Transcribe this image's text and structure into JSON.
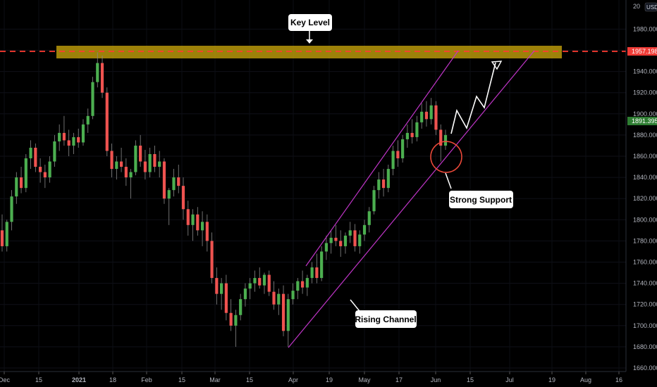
{
  "chart_data": {
    "type": "candlestick",
    "currency": "USD",
    "ylim": [
      1655,
      2010
    ],
    "yticks": [
      1660,
      1680,
      1700,
      1720,
      1740,
      1760,
      1780,
      1800,
      1820,
      1840,
      1860,
      1880,
      1900,
      1920,
      1940,
      1960,
      1980
    ],
    "xticks": [
      "Dec",
      "15",
      "2021",
      "18",
      "Feb",
      "15",
      "Mar",
      "15",
      "Apr",
      "19",
      "May",
      "17",
      "Jun",
      "15",
      "Jul",
      "19",
      "Aug",
      "16"
    ],
    "current_price": "1891.395",
    "key_level_price": "1957.198",
    "top_axis_partial": "20",
    "annotations": {
      "key_level": "Key Level",
      "strong_support": "Strong Support",
      "rising_channel": "Rising Channel"
    },
    "colors": {
      "up": "#26a69a",
      "up_bright": "#4caf50",
      "down": "#ef5350",
      "channel": "#c035c8",
      "zone": "#b8980a",
      "key_line": "#ff3b30",
      "price_tag": "#2e7d32"
    },
    "candles": [
      [
        1790,
        1805,
        1770,
        1775
      ],
      [
        1775,
        1800,
        1770,
        1798
      ],
      [
        1798,
        1828,
        1790,
        1822
      ],
      [
        1822,
        1845,
        1815,
        1840
      ],
      [
        1840,
        1850,
        1825,
        1830
      ],
      [
        1830,
        1862,
        1826,
        1858
      ],
      [
        1858,
        1875,
        1848,
        1868
      ],
      [
        1868,
        1872,
        1845,
        1850
      ],
      [
        1850,
        1858,
        1835,
        1845
      ],
      [
        1845,
        1852,
        1830,
        1840
      ],
      [
        1840,
        1860,
        1835,
        1855
      ],
      [
        1855,
        1880,
        1850,
        1874
      ],
      [
        1874,
        1890,
        1865,
        1882
      ],
      [
        1882,
        1898,
        1870,
        1875
      ],
      [
        1875,
        1885,
        1860,
        1870
      ],
      [
        1870,
        1882,
        1862,
        1878
      ],
      [
        1878,
        1886,
        1868,
        1873
      ],
      [
        1873,
        1895,
        1870,
        1890
      ],
      [
        1890,
        1905,
        1882,
        1898
      ],
      [
        1898,
        1935,
        1895,
        1930
      ],
      [
        1930,
        1958,
        1925,
        1948
      ],
      [
        1948,
        1955,
        1915,
        1920
      ],
      [
        1920,
        1925,
        1860,
        1865
      ],
      [
        1865,
        1872,
        1840,
        1848
      ],
      [
        1848,
        1860,
        1838,
        1855
      ],
      [
        1855,
        1868,
        1845,
        1850
      ],
      [
        1850,
        1858,
        1832,
        1840
      ],
      [
        1840,
        1848,
        1820,
        1845
      ],
      [
        1845,
        1875,
        1842,
        1870
      ],
      [
        1870,
        1880,
        1850,
        1855
      ],
      [
        1855,
        1866,
        1838,
        1845
      ],
      [
        1845,
        1868,
        1840,
        1862
      ],
      [
        1862,
        1870,
        1845,
        1850
      ],
      [
        1850,
        1865,
        1840,
        1855
      ],
      [
        1855,
        1858,
        1815,
        1820
      ],
      [
        1820,
        1830,
        1795,
        1828
      ],
      [
        1828,
        1848,
        1822,
        1840
      ],
      [
        1840,
        1852,
        1825,
        1832
      ],
      [
        1832,
        1840,
        1800,
        1810
      ],
      [
        1810,
        1818,
        1785,
        1795
      ],
      [
        1795,
        1810,
        1780,
        1805
      ],
      [
        1805,
        1812,
        1785,
        1790
      ],
      [
        1790,
        1808,
        1775,
        1798
      ],
      [
        1798,
        1805,
        1770,
        1780
      ],
      [
        1780,
        1788,
        1740,
        1745
      ],
      [
        1745,
        1755,
        1720,
        1730
      ],
      [
        1730,
        1745,
        1715,
        1740
      ],
      [
        1740,
        1748,
        1705,
        1712
      ],
      [
        1712,
        1725,
        1695,
        1700
      ],
      [
        1700,
        1715,
        1680,
        1710
      ],
      [
        1710,
        1730,
        1705,
        1725
      ],
      [
        1725,
        1740,
        1718,
        1735
      ],
      [
        1735,
        1745,
        1725,
        1740
      ],
      [
        1740,
        1752,
        1732,
        1745
      ],
      [
        1745,
        1755,
        1735,
        1738
      ],
      [
        1738,
        1750,
        1730,
        1748
      ],
      [
        1748,
        1752,
        1728,
        1732
      ],
      [
        1732,
        1742,
        1715,
        1720
      ],
      [
        1720,
        1735,
        1710,
        1730
      ],
      [
        1730,
        1738,
        1690,
        1695
      ],
      [
        1695,
        1730,
        1680,
        1725
      ],
      [
        1725,
        1740,
        1720,
        1733
      ],
      [
        1733,
        1745,
        1725,
        1742
      ],
      [
        1742,
        1752,
        1730,
        1736
      ],
      [
        1736,
        1748,
        1728,
        1745
      ],
      [
        1745,
        1760,
        1740,
        1755
      ],
      [
        1755,
        1768,
        1740,
        1745
      ],
      [
        1745,
        1775,
        1742,
        1770
      ],
      [
        1770,
        1785,
        1762,
        1778
      ],
      [
        1778,
        1790,
        1768,
        1783
      ],
      [
        1783,
        1795,
        1775,
        1780
      ],
      [
        1780,
        1790,
        1765,
        1775
      ],
      [
        1775,
        1788,
        1768,
        1785
      ],
      [
        1785,
        1798,
        1778,
        1790
      ],
      [
        1790,
        1796,
        1770,
        1775
      ],
      [
        1775,
        1790,
        1768,
        1786
      ],
      [
        1786,
        1800,
        1780,
        1795
      ],
      [
        1795,
        1812,
        1788,
        1808
      ],
      [
        1808,
        1832,
        1805,
        1828
      ],
      [
        1828,
        1845,
        1820,
        1838
      ],
      [
        1838,
        1848,
        1822,
        1830
      ],
      [
        1830,
        1852,
        1826,
        1848
      ],
      [
        1848,
        1870,
        1842,
        1865
      ],
      [
        1865,
        1875,
        1850,
        1858
      ],
      [
        1858,
        1880,
        1854,
        1876
      ],
      [
        1876,
        1890,
        1868,
        1882
      ],
      [
        1882,
        1895,
        1872,
        1878
      ],
      [
        1878,
        1898,
        1874,
        1892
      ],
      [
        1892,
        1910,
        1886,
        1902
      ],
      [
        1902,
        1912,
        1888,
        1895
      ],
      [
        1895,
        1915,
        1890,
        1908
      ],
      [
        1908,
        1912,
        1880,
        1885
      ],
      [
        1885,
        1890,
        1855,
        1870
      ],
      [
        1870,
        1885,
        1866,
        1880
      ]
    ]
  }
}
